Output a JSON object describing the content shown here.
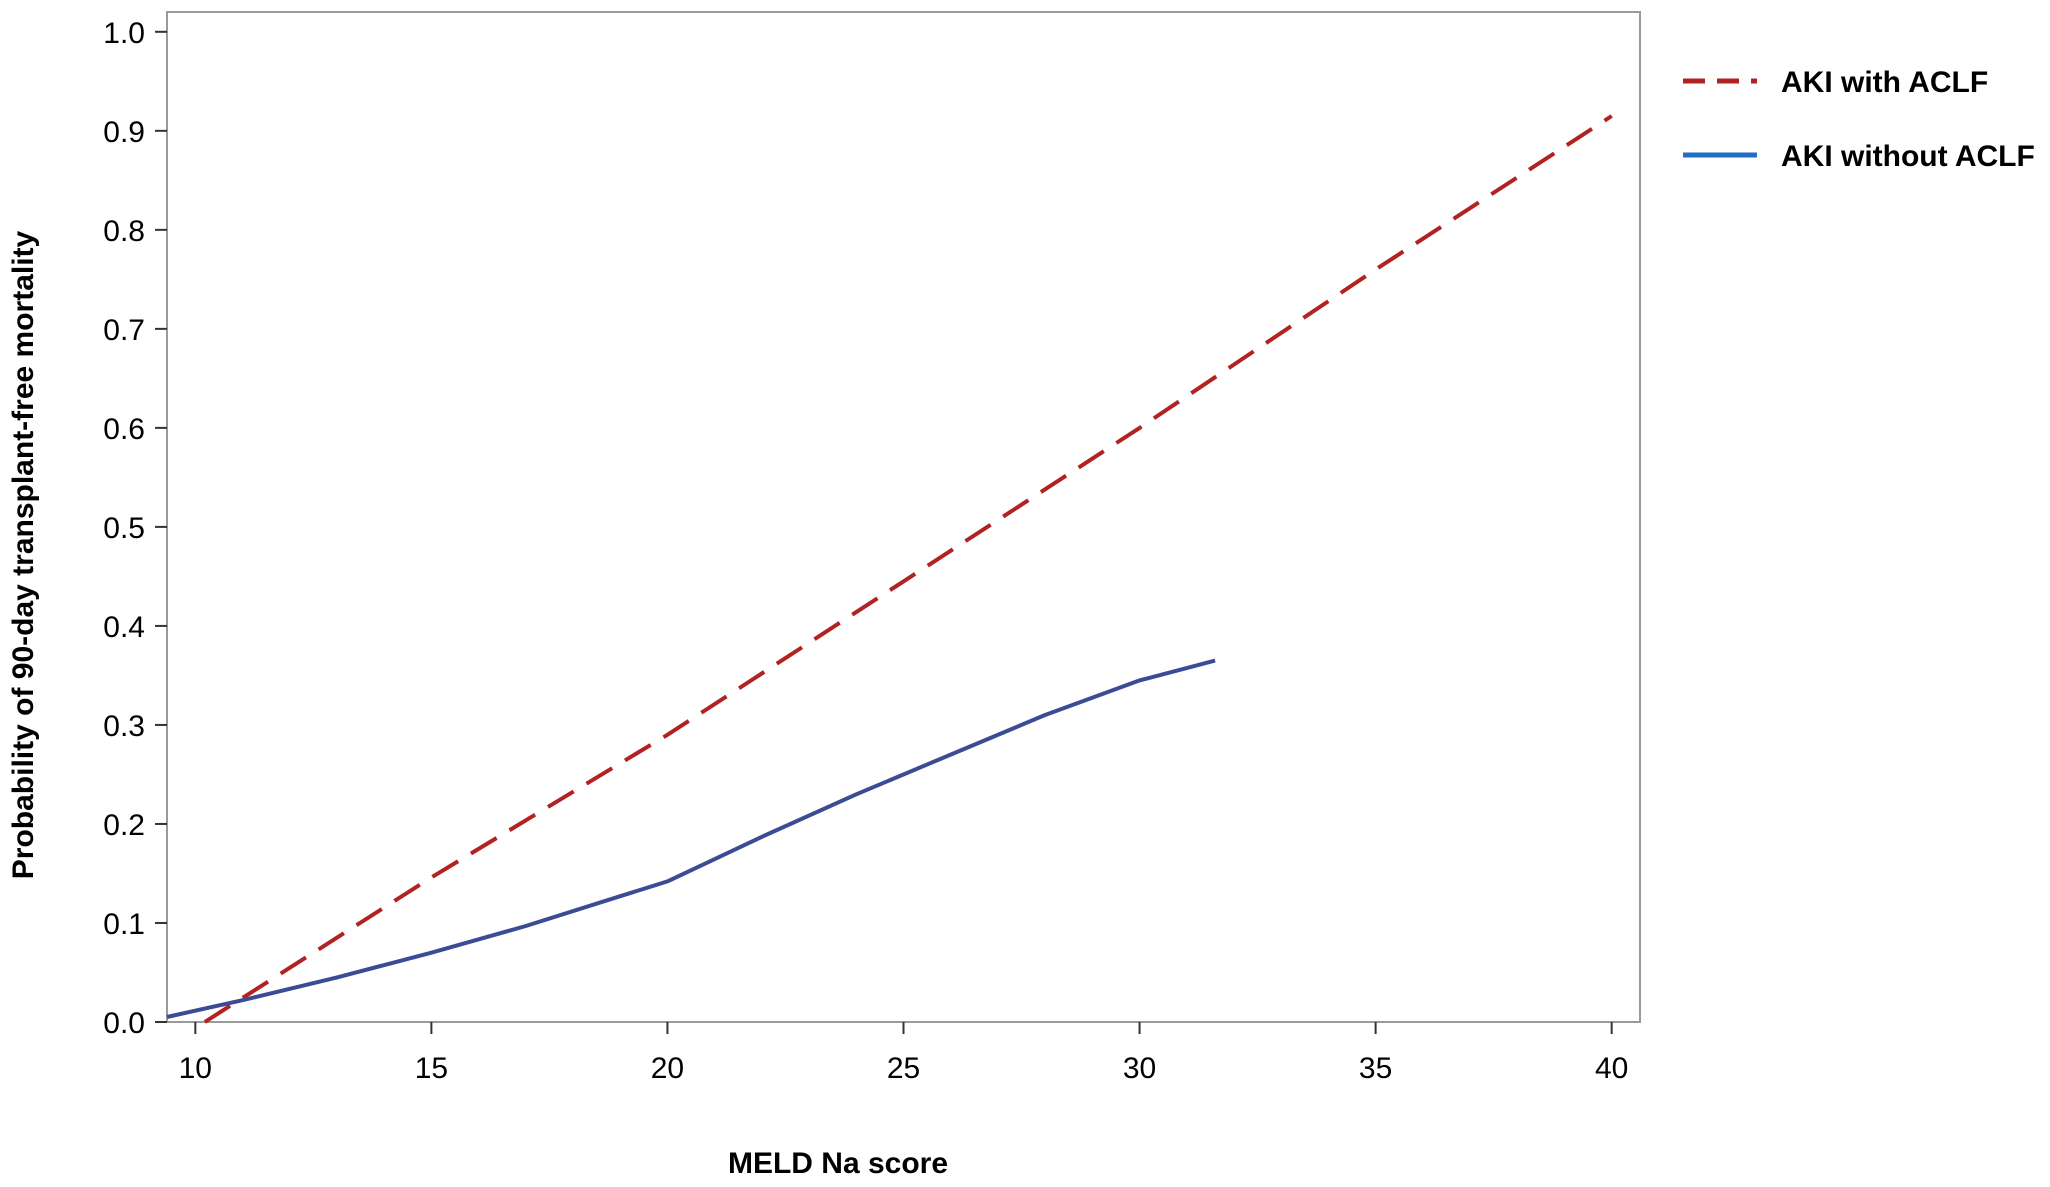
{
  "chart_data": {
    "type": "line",
    "title": "",
    "xlabel": "MELD Na score",
    "ylabel": "Probability of 90-day transplant-free mortality",
    "xlim": [
      9.4,
      40.6
    ],
    "ylim": [
      0.0,
      1.02
    ],
    "xticks": [
      10,
      15,
      20,
      25,
      30,
      35,
      40
    ],
    "xtick_labels": [
      "10",
      "15",
      "20",
      "25",
      "30",
      "35",
      "40"
    ],
    "yticks": [
      0.0,
      0.1,
      0.2,
      0.3,
      0.4,
      0.5,
      0.6,
      0.7,
      0.8,
      0.9,
      1.0
    ],
    "ytick_labels": [
      "0.0",
      "0.1",
      "0.2",
      "0.3",
      "0.4",
      "0.5",
      "0.6",
      "0.7",
      "0.8",
      "0.9",
      "1.0"
    ],
    "grid": false,
    "legend_position": "outside-right-top",
    "series": [
      {
        "name": "AKI with ACLF",
        "color": "#B22222",
        "line_style": "dashed",
        "x": [
          10.2,
          15,
          20,
          25,
          30,
          35,
          40
        ],
        "y": [
          0.0,
          0.146,
          0.29,
          0.445,
          0.6,
          0.76,
          0.915
        ]
      },
      {
        "name": "AKI without ACLF",
        "color": "#3B4C94",
        "legend_color": "#1F6FC8",
        "line_style": "solid",
        "x": [
          9.4,
          11,
          13,
          15,
          17,
          19,
          20,
          22,
          24,
          26,
          28,
          30,
          31.6
        ],
        "y": [
          0.005,
          0.022,
          0.045,
          0.07,
          0.097,
          0.127,
          0.142,
          0.187,
          0.23,
          0.27,
          0.31,
          0.345,
          0.365
        ]
      }
    ]
  }
}
